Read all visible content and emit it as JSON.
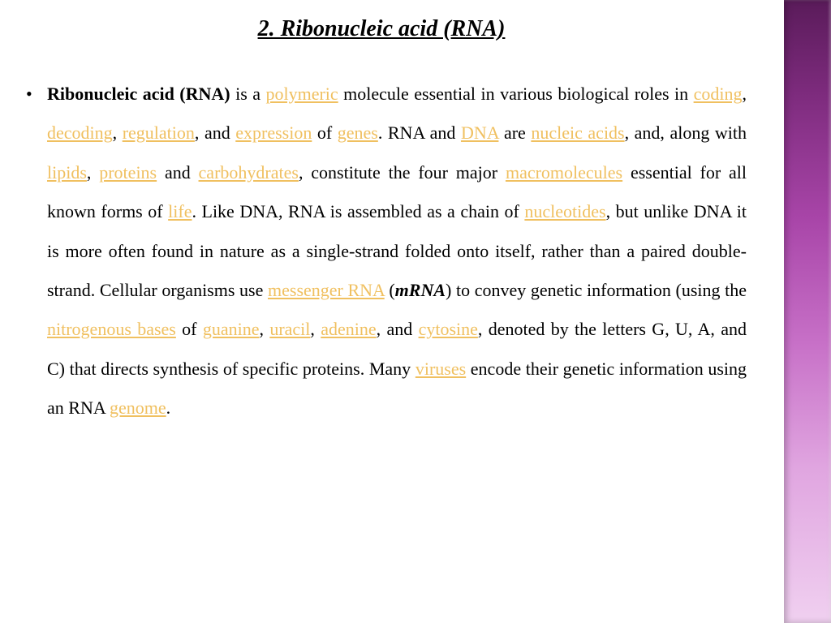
{
  "title": "2. Ribonucleic acid (RNA)",
  "colors": {
    "link_color": "#f0c060",
    "text_color": "#000000",
    "background": "#ffffff",
    "sidebar_gradient_top": "#5a1b5a",
    "sidebar_gradient_bottom": "#f0d0f0"
  },
  "typography": {
    "title_fontsize": 28,
    "body_fontsize": 22,
    "line_height": 2.2,
    "body_font": "Times New Roman",
    "title_font": "Georgia"
  },
  "bullet": "•",
  "segments": [
    {
      "t": "Ribonucleic acid (RNA)",
      "style": "bold"
    },
    {
      "t": " is a "
    },
    {
      "t": "polymeric",
      "style": "link"
    },
    {
      "t": " molecule essential in various biological roles in "
    },
    {
      "t": "coding",
      "style": "link"
    },
    {
      "t": ", "
    },
    {
      "t": "decoding",
      "style": "link"
    },
    {
      "t": ", "
    },
    {
      "t": "regulation",
      "style": "link"
    },
    {
      "t": ", and "
    },
    {
      "t": "expression",
      "style": "link"
    },
    {
      "t": " of "
    },
    {
      "t": "genes",
      "style": "link"
    },
    {
      "t": ". RNA and "
    },
    {
      "t": "DNA",
      "style": "link"
    },
    {
      "t": " are "
    },
    {
      "t": "nucleic acids",
      "style": "link"
    },
    {
      "t": ", and, along with "
    },
    {
      "t": "lipids",
      "style": "link"
    },
    {
      "t": ", "
    },
    {
      "t": "proteins",
      "style": "link"
    },
    {
      "t": " and "
    },
    {
      "t": "carbohydrates",
      "style": "link"
    },
    {
      "t": ", constitute the four major "
    },
    {
      "t": "macromolecules",
      "style": "link"
    },
    {
      "t": " essential for all known forms of "
    },
    {
      "t": "life",
      "style": "link"
    },
    {
      "t": ". Like DNA, RNA is assembled as a chain of "
    },
    {
      "t": "nucleotides",
      "style": "link"
    },
    {
      "t": ", but unlike DNA it is more often found in nature as a single-strand folded onto itself, rather than a paired double-strand. Cellular organisms use "
    },
    {
      "t": "messenger RNA",
      "style": "link"
    },
    {
      "t": " ("
    },
    {
      "t": "mRNA",
      "style": "bold-italic"
    },
    {
      "t": ") to convey genetic information (using the "
    },
    {
      "t": "nitrogenous bases",
      "style": "link"
    },
    {
      "t": " of "
    },
    {
      "t": "guanine",
      "style": "link"
    },
    {
      "t": ", "
    },
    {
      "t": "uracil",
      "style": "link"
    },
    {
      "t": ", "
    },
    {
      "t": "adenine",
      "style": "link"
    },
    {
      "t": ", and "
    },
    {
      "t": "cytosine",
      "style": "link"
    },
    {
      "t": ", denoted by the letters G, U, A, and C) that directs synthesis of specific proteins. Many "
    },
    {
      "t": "viruses",
      "style": "link"
    },
    {
      "t": " encode their genetic information using an RNA "
    },
    {
      "t": "genome",
      "style": "link"
    },
    {
      "t": "."
    }
  ]
}
